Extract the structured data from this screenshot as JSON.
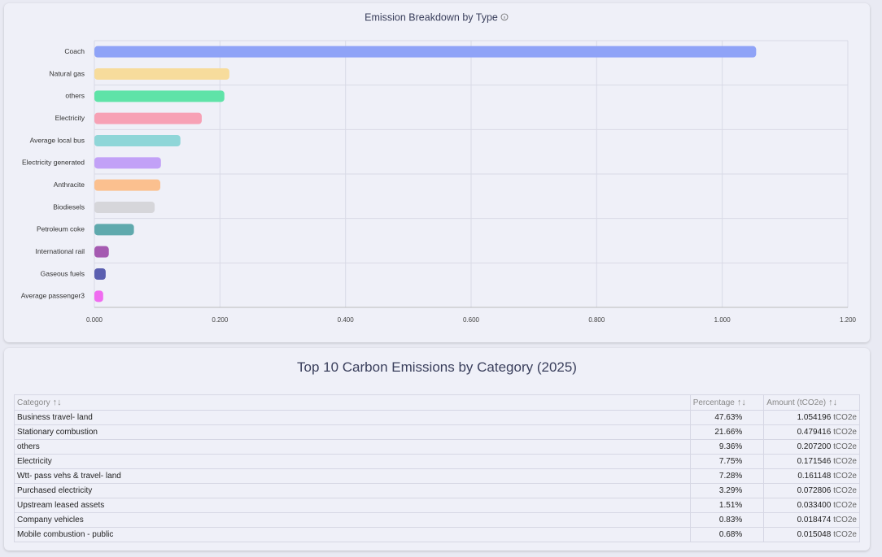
{
  "chart_data": {
    "type": "hbar",
    "title": "Emission Breakdown by Type",
    "categories": [
      "Coach",
      "Natural gas",
      "others",
      "Electricity",
      "Average local bus",
      "Electricity generated",
      "Anthracite",
      "Biodiesels",
      "Petroleum coke",
      "International rail",
      "Gaseous fuels",
      "Average passenger3"
    ],
    "values": [
      1.054,
      0.215,
      0.207,
      0.171,
      0.137,
      0.106,
      0.105,
      0.096,
      0.063,
      0.023,
      0.018,
      0.014
    ],
    "colors": [
      "#8fa3f7",
      "#f7dc9c",
      "#5fe3a8",
      "#f7a1b5",
      "#8fd6d8",
      "#c2a1f7",
      "#fbc08f",
      "#d6d6da",
      "#5fa9ad",
      "#a55ab1",
      "#5b5fb0",
      "#f06cf0"
    ],
    "xlim": [
      0,
      1.2
    ],
    "xticks": [
      {
        "value": 0,
        "label": "0.000"
      },
      {
        "value": 0.2,
        "label": "0.200"
      },
      {
        "value": 0.4,
        "label": "0.400"
      },
      {
        "value": 0.6,
        "label": "0.600"
      },
      {
        "value": 0.8,
        "label": "0.800"
      },
      {
        "value": 1,
        "label": "1.000"
      },
      {
        "value": 1.2,
        "label": "1.200"
      }
    ],
    "grid": true
  },
  "table": {
    "title": "Top 10 Carbon Emissions by Category (2025)",
    "columns": [
      "Category",
      "Percentage",
      "Amount (tCO2e)"
    ],
    "rows": [
      [
        "Business travel- land",
        "47.63%",
        "1.054196",
        "tCO2e"
      ],
      [
        "Stationary combustion",
        "21.66%",
        "0.479416",
        "tCO2e"
      ],
      [
        "others",
        "9.36%",
        "0.207200",
        "tCO2e"
      ],
      [
        "Electricity",
        "7.75%",
        "0.171546",
        "tCO2e"
      ],
      [
        "Wtt- pass vehs & travel- land",
        "7.28%",
        "0.161148",
        "tCO2e"
      ],
      [
        "Purchased electricity",
        "3.29%",
        "0.072806",
        "tCO2e"
      ],
      [
        "Upstream leased assets",
        "1.51%",
        "0.033400",
        "tCO2e"
      ],
      [
        "Company vehicles",
        "0.83%",
        "0.018474",
        "tCO2e"
      ],
      [
        "Mobile combustion - public",
        "0.68%",
        "0.015048",
        "tCO2e"
      ]
    ]
  }
}
